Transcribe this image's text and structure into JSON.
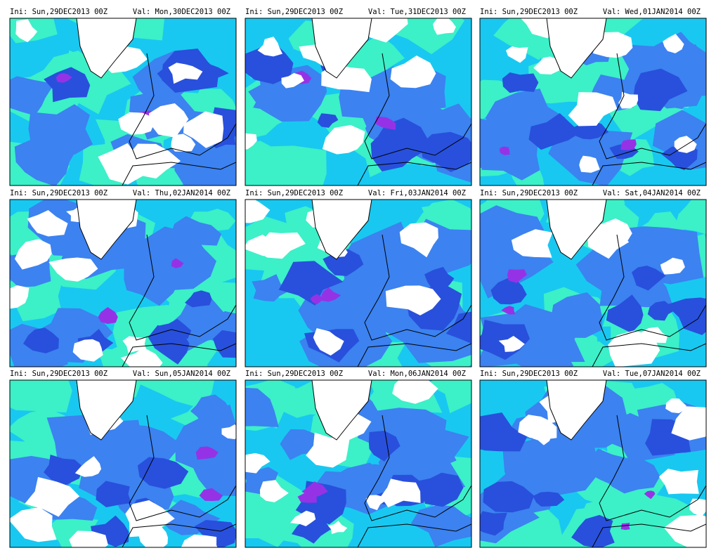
{
  "panels": [
    {
      "ini": "Ini: Sun,29DEC2013 00Z",
      "val": "Val: Mon,30DEC2013 00Z"
    },
    {
      "ini": "Ini: Sun,29DEC2013 00Z",
      "val": "Val: Tue,31DEC2013 00Z"
    },
    {
      "ini": "Ini: Sun,29DEC2013 00Z",
      "val": "Val: Wed,01JAN2014 00Z"
    },
    {
      "ini": "Ini: Sun,29DEC2013 00Z",
      "val": "Val: Thu,02JAN2014 00Z"
    },
    {
      "ini": "Ini: Sun,29DEC2013 00Z",
      "val": "Val: Fri,03JAN2014 00Z"
    },
    {
      "ini": "Ini: Sun,29DEC2013 00Z",
      "val": "Val: Sat,04JAN2014 00Z"
    },
    {
      "ini": "Ini: Sun,29DEC2013 00Z",
      "val": "Val: Sun,05JAN2014 00Z"
    },
    {
      "ini": "Ini: Sun,29DEC2013 00Z",
      "val": "Val: Mon,06JAN2014 00Z"
    },
    {
      "ini": "Ini: Sun,29DEC2013 00Z",
      "val": "Val: Tue,07JAN2014 00Z"
    }
  ]
}
